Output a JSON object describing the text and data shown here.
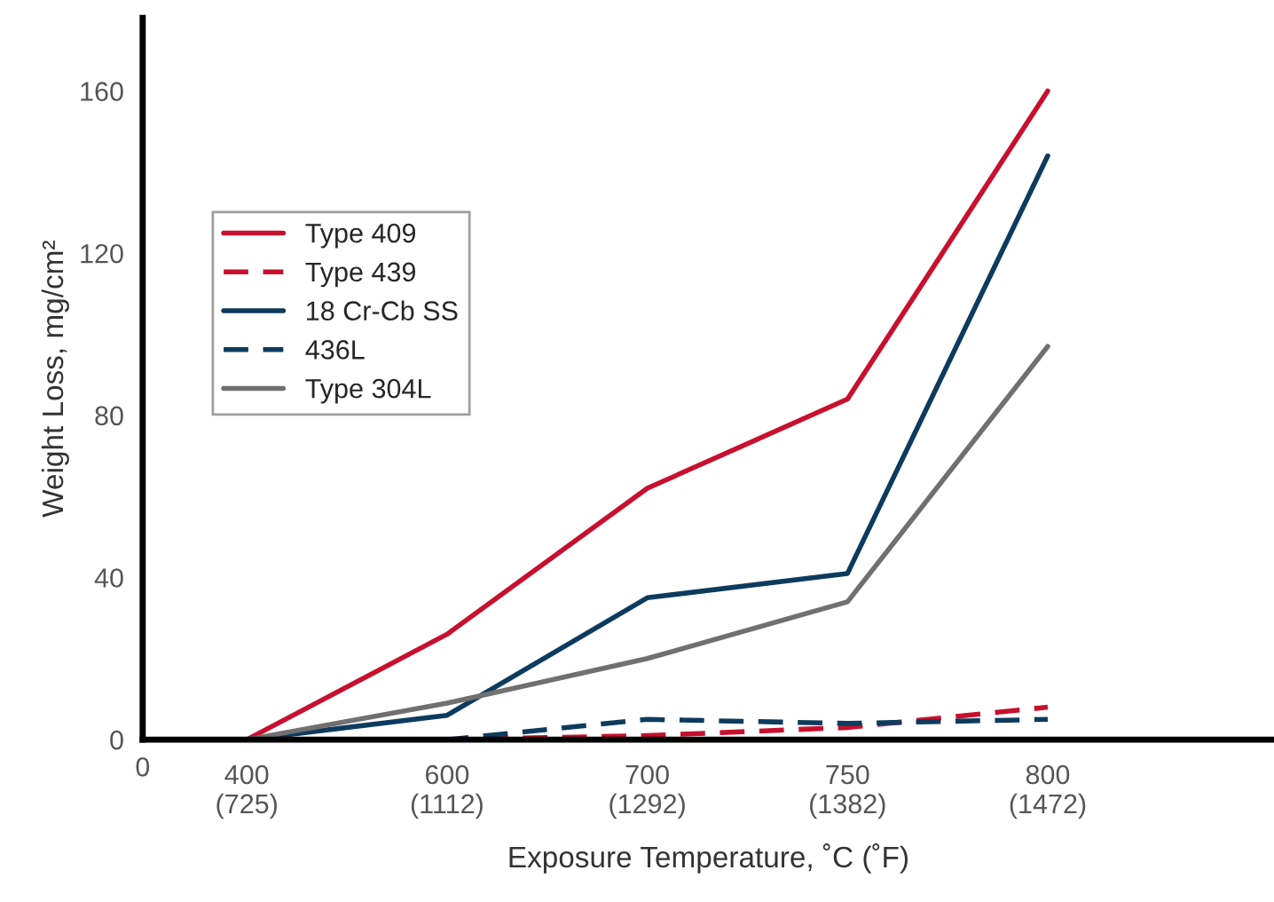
{
  "chart_data": {
    "type": "line",
    "xlabel": "Exposure Temperature, ˚C (˚F)",
    "ylabel": "Weight Loss, mg/cm²",
    "categories": [
      "400\n(725)",
      "600\n(1112)",
      "700\n(1292)",
      "750\n(1382)",
      "800\n(1472)"
    ],
    "ylim": [
      0,
      178
    ],
    "yticks": [
      0,
      40,
      80,
      120,
      160
    ],
    "grid": false,
    "legend": "top left",
    "annotations": [
      "0"
    ],
    "series": [
      {
        "name": "Type 409",
        "color": "#c8102e",
        "line_style": "solid",
        "values": [
          0,
          26,
          62,
          84,
          160
        ]
      },
      {
        "name": "Type 439",
        "color": "#c8102e",
        "line_style": "dashed",
        "values": [
          0,
          0,
          1,
          3,
          8
        ]
      },
      {
        "name": "18 Cr-Cb SS",
        "color": "#0d3b5e",
        "line_style": "solid",
        "values": [
          0,
          6,
          35,
          41,
          144
        ]
      },
      {
        "name": "436L",
        "color": "#0d3b5e",
        "line_style": "dashed",
        "values": [
          0,
          0,
          5,
          4,
          5
        ]
      },
      {
        "name": "Type 304L",
        "color": "#707070",
        "line_style": "solid",
        "values": [
          0,
          9,
          20,
          34,
          97
        ]
      }
    ]
  }
}
